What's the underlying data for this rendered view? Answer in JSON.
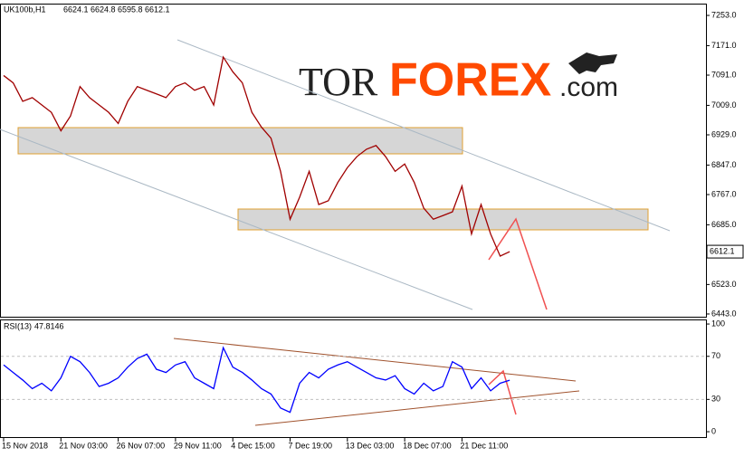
{
  "logo": {
    "parts": [
      "TOR",
      "FOREX",
      ".com"
    ]
  },
  "chart_data": [
    {
      "type": "line",
      "symbol": "UK100b,H1",
      "ohlc": [
        6624.1,
        6624.8,
        6595.8,
        6612.1
      ],
      "categories": [
        "15 Nov 2018",
        null,
        null,
        null,
        null,
        null,
        "21 Nov 03:00",
        null,
        null,
        null,
        null,
        null,
        "26 Nov 07:00",
        null,
        null,
        null,
        null,
        null,
        "29 Nov 11:00",
        null,
        null,
        null,
        null,
        null,
        "4 Dec 15:00",
        null,
        null,
        null,
        null,
        null,
        "7 Dec 19:00",
        null,
        null,
        null,
        null,
        null,
        "13 Dec 03:00",
        null,
        null,
        null,
        null,
        null,
        "18 Dec 07:00",
        null,
        null,
        null,
        null,
        null,
        "21 Dec 11:00",
        null,
        null,
        null,
        null,
        null
      ],
      "series": [
        {
          "color": "#a00000",
          "values": [
            7090,
            7070,
            7020,
            7030,
            7010,
            6990,
            6940,
            6980,
            7060,
            7030,
            7010,
            6990,
            6960,
            7020,
            7060,
            7050,
            7040,
            7030,
            7060,
            7070,
            7050,
            7060,
            7010,
            7140,
            7100,
            7070,
            6990,
            6950,
            6920,
            6830,
            6700,
            6760,
            6830,
            6740,
            6750,
            6800,
            6840,
            6870,
            6890,
            6900,
            6870,
            6830,
            6850,
            6800,
            6730,
            6700,
            6710,
            6720,
            6790,
            6660,
            6740,
            6660,
            6600,
            6612.1
          ]
        }
      ],
      "ylim": [
        6438,
        7285
      ],
      "yticks": [
        {
          "value": 7253,
          "label": "7253.0"
        },
        {
          "value": 7171,
          "label": "7171.0"
        },
        {
          "value": 7091,
          "label": "7091.0"
        },
        {
          "value": 7009,
          "label": "7009.0"
        },
        {
          "value": 6929,
          "label": "6929.0"
        },
        {
          "value": 6847,
          "label": "6847.0"
        },
        {
          "value": 6767,
          "label": "6767.0"
        },
        {
          "value": 6685,
          "label": "6685.0"
        },
        {
          "value": 6523,
          "label": "6523.0"
        },
        {
          "value": 6443,
          "label": "6443.0"
        }
      ],
      "grid": false
    },
    {
      "type": "line",
      "indicator": "RSI(13)",
      "series": [
        {
          "color": "#0000ff",
          "values": [
            62,
            55,
            48,
            40,
            45,
            38,
            50,
            70,
            65,
            55,
            42,
            45,
            50,
            60,
            68,
            72,
            58,
            55,
            62,
            65,
            50,
            45,
            40,
            78,
            60,
            55,
            48,
            40,
            35,
            22,
            18,
            45,
            55,
            50,
            58,
            62,
            65,
            60,
            55,
            50,
            48,
            52,
            40,
            35,
            45,
            38,
            42,
            65,
            60,
            40,
            50,
            38,
            45,
            47.8146
          ]
        }
      ],
      "ylim": [
        -5,
        103.4
      ],
      "yticks": [
        100,
        70,
        30,
        0
      ],
      "grid": false
    }
  ]
}
